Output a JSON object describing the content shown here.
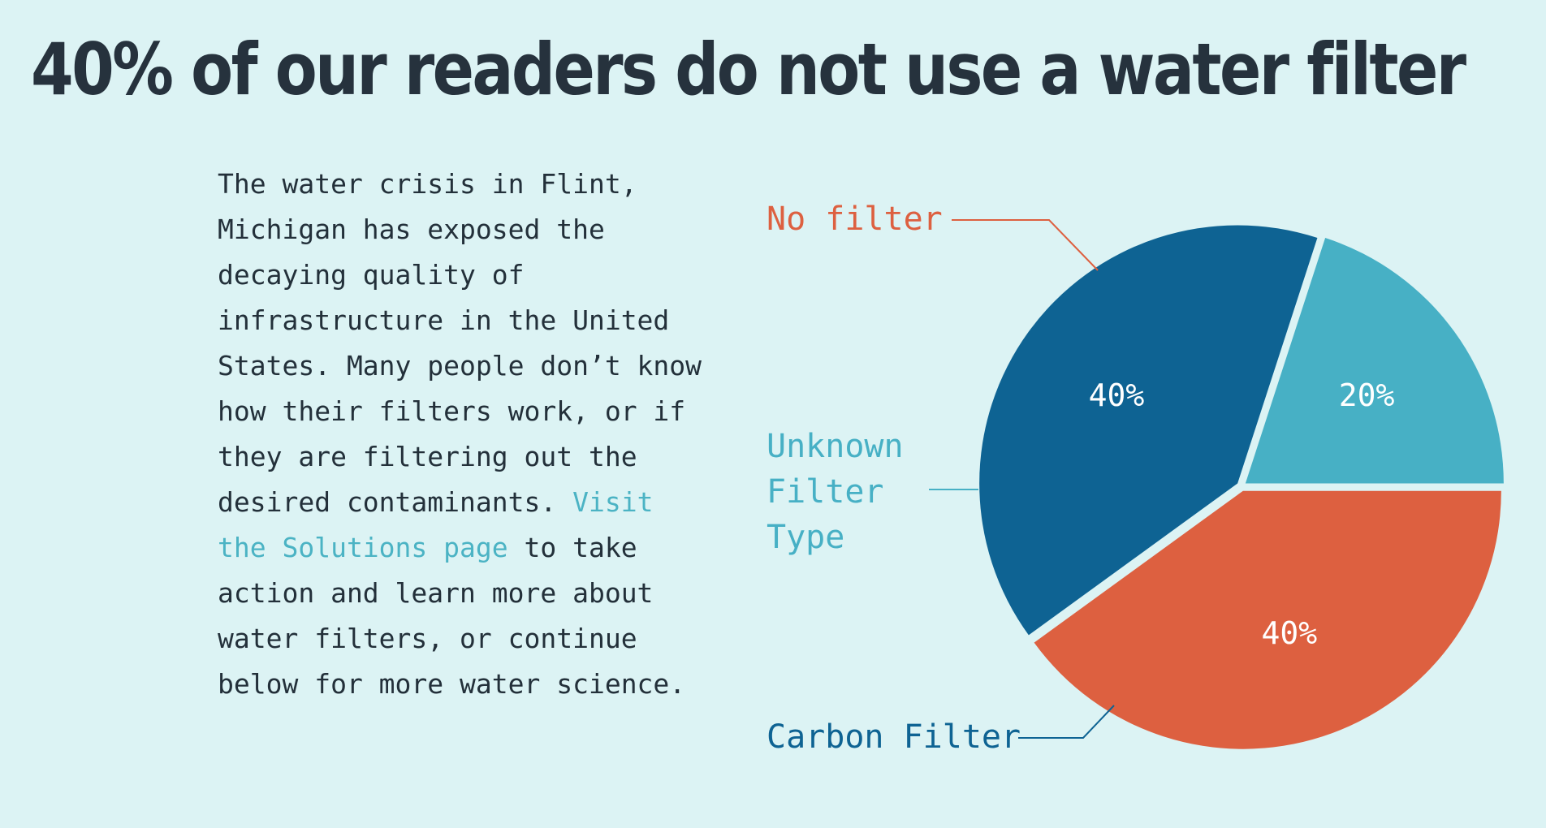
{
  "header": {
    "title": "40% of our readers do not use a water filter"
  },
  "article": {
    "text_before_link": "The water crisis in Flint, Michigan has exposed the decaying quality of infrastructure in the United States. Many people don’t know how their filters work, or if they are filtering out the desired contaminants. ",
    "link_text": "Visit the Solutions page",
    "text_after_link": " to take action and learn more about water filters, or continue below for more water science."
  },
  "chart_data": {
    "type": "pie",
    "title": "40% of our readers do not use a water filter",
    "slices": [
      {
        "label": "No filter",
        "label_lines": [
          "No filter"
        ],
        "value": 40,
        "value_label": "40%",
        "color": "#dd6040"
      },
      {
        "label": "Carbon Filter",
        "label_lines": [
          "Carbon Filter"
        ],
        "value": 40,
        "value_label": "40%",
        "color": "#0e6393"
      },
      {
        "label": "Unknown Filter Type",
        "label_lines": [
          "Unknown",
          "Filter",
          "Type"
        ],
        "value": 20,
        "value_label": "20%",
        "color": "#47b0c5"
      }
    ],
    "start_angle_deg": 0,
    "direction": "clockwise",
    "legend": "none"
  },
  "colors": {
    "background": "#dcf3f4",
    "title_text": "#26323d",
    "body_text": "#23303a",
    "link": "#4bb3c4",
    "slice_value_text": "#ffffff"
  }
}
